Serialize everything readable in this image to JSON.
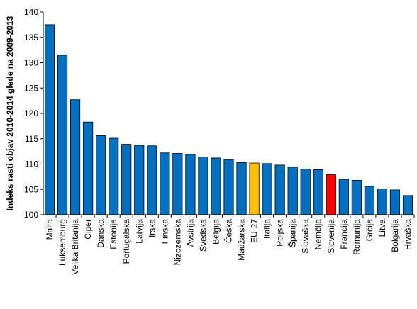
{
  "chart_data": {
    "type": "bar",
    "title": "",
    "xlabel": "",
    "ylabel": "Indeks rasti objav 2010-2014 glede na 2009-2013",
    "ylim": [
      100,
      140
    ],
    "yticks": [
      100,
      105,
      110,
      115,
      120,
      125,
      130,
      135,
      140
    ],
    "grid": false,
    "legend": "none",
    "categories": [
      "Malta",
      "Luksemburg",
      "Velika Britanija",
      "Ciper",
      "Danska",
      "Estonija",
      "Portugalska",
      "Latvija",
      "Irska",
      "Finska",
      "Nizozemska",
      "Avstrija",
      "Švedska",
      "Belgija",
      "Češka",
      "Madžarska",
      "EU-27",
      "Italija",
      "Poljska",
      "Španija",
      "Slovaška",
      "Nemčija",
      "Slovenija",
      "Francija",
      "Romunija",
      "Grčija",
      "Litva",
      "Bolgarija",
      "Hrvaška"
    ],
    "values": [
      137.5,
      131.5,
      122.7,
      118.3,
      115.6,
      115.1,
      113.9,
      113.7,
      113.6,
      112.2,
      112.1,
      111.9,
      111.4,
      111.2,
      110.9,
      110.3,
      110.2,
      110.1,
      109.8,
      109.4,
      109.0,
      108.9,
      107.9,
      107.0,
      106.8,
      105.6,
      105.1,
      104.9,
      103.8
    ],
    "colors": {
      "default": "#0070c0",
      "highlight_eu": "#ffc000",
      "highlight_si": "#ff0000",
      "outline": "#000000"
    },
    "highlights": {
      "EU-27": "highlight_eu",
      "Slovenija": "highlight_si"
    }
  }
}
